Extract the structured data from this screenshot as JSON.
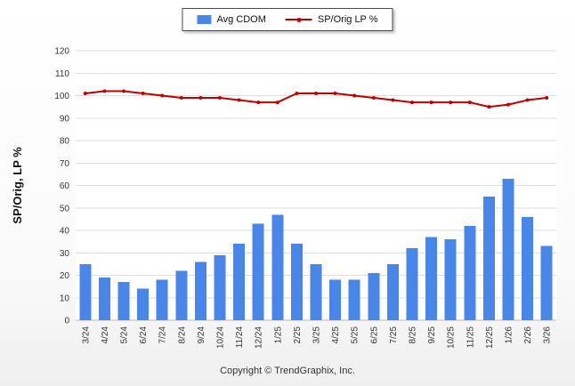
{
  "legend": {
    "items": [
      {
        "label": "Avg CDOM",
        "type": "bar",
        "color": "#4a86e8"
      },
      {
        "label": "SP/Orig LP %",
        "type": "line",
        "color": "#c00000"
      }
    ]
  },
  "footer": {
    "copyright": "Copyright © TrendGraphix, Inc."
  },
  "chart_data": {
    "type": "bar+line",
    "title": "",
    "xlabel": "",
    "ylabel": "SP/Orig, LP %",
    "ylim": [
      0,
      120
    ],
    "ytick_step": 10,
    "grid": true,
    "legend_position": "top-center",
    "categories": [
      "3/24",
      "4/24",
      "5/24",
      "6/24",
      "7/24",
      "8/24",
      "9/24",
      "10/24",
      "11/24",
      "12/24",
      "1/25",
      "2/25",
      "3/25",
      "4/25",
      "5/25",
      "6/25",
      "7/25",
      "8/25",
      "9/25",
      "10/25",
      "11/25",
      "12/25",
      "1/26",
      "2/26",
      "3/26"
    ],
    "series": [
      {
        "name": "Avg CDOM",
        "type": "bar",
        "color": "#4a86e8",
        "values": [
          25,
          19,
          17,
          14,
          18,
          22,
          26,
          29,
          34,
          43,
          47,
          34,
          25,
          18,
          18,
          21,
          25,
          32,
          37,
          36,
          42,
          55,
          63,
          46,
          33
        ]
      },
      {
        "name": "SP/Orig LP %",
        "type": "line",
        "color": "#c00000",
        "values": [
          101,
          102,
          102,
          101,
          100,
          99,
          99,
          99,
          98,
          97,
          97,
          101,
          101,
          101,
          100,
          99,
          98,
          97,
          97,
          97,
          97,
          95,
          96,
          98,
          99
        ]
      }
    ],
    "colors": {
      "gridline": "#dedede",
      "baseline": "#b9b9b9",
      "tick_text": "#333333",
      "plot_background": "#ffffff"
    }
  }
}
